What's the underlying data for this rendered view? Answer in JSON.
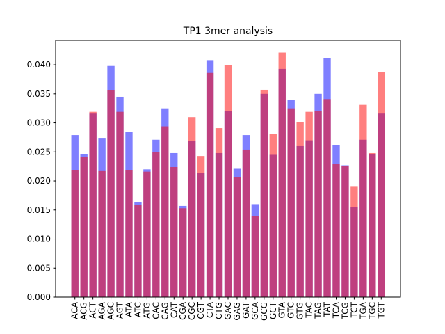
{
  "chart_data": {
    "type": "bar",
    "title": "TP1 3mer analysis",
    "categories": [
      "ACA",
      "ACG",
      "ACT",
      "AGA",
      "AGC",
      "AGT",
      "ATA",
      "ATC",
      "ATG",
      "CAC",
      "CAG",
      "CAT",
      "CGA",
      "CGC",
      "CGT",
      "CTA",
      "CTG",
      "GAC",
      "GAG",
      "GAT",
      "GCA",
      "GCG",
      "GCT",
      "GTA",
      "GTC",
      "GTG",
      "TAC",
      "TAG",
      "TAT",
      "TCA",
      "TCG",
      "TCT",
      "TGA",
      "TGC",
      "TGT"
    ],
    "series": [
      {
        "color": "#0000ff",
        "values": [
          0.0279,
          0.0246,
          0.0316,
          0.0273,
          0.0398,
          0.0345,
          0.0285,
          0.0163,
          0.022,
          0.0271,
          0.0325,
          0.0248,
          0.0157,
          0.0269,
          0.0214,
          0.0408,
          0.0248,
          0.032,
          0.0221,
          0.0279,
          0.016,
          0.035,
          0.0245,
          0.0393,
          0.034,
          0.026,
          0.027,
          0.035,
          0.0412,
          0.0262,
          0.0227,
          0.0155,
          0.0271,
          0.0246,
          0.0316
        ]
      },
      {
        "color": "#ff0000",
        "values": [
          0.0219,
          0.0242,
          0.0319,
          0.0217,
          0.0356,
          0.0319,
          0.0219,
          0.0159,
          0.0216,
          0.025,
          0.0294,
          0.0224,
          0.0153,
          0.031,
          0.0243,
          0.0386,
          0.0291,
          0.0399,
          0.0206,
          0.0254,
          0.014,
          0.0357,
          0.0281,
          0.0421,
          0.0325,
          0.0301,
          0.0319,
          0.032,
          0.0341,
          0.023,
          0.0226,
          0.019,
          0.0331,
          0.0248,
          0.0388
        ]
      }
    ],
    "opacity": 0.5,
    "ylim": [
      0,
      0.0442
    ],
    "yticks": [
      {
        "value": 0,
        "label": "0.000"
      },
      {
        "value": 0.005,
        "label": "0.005"
      },
      {
        "value": 0.01,
        "label": "0.010"
      },
      {
        "value": 0.015,
        "label": "0.015"
      },
      {
        "value": 0.02,
        "label": "0.020"
      },
      {
        "value": 0.025,
        "label": "0.025"
      },
      {
        "value": 0.03,
        "label": "0.030"
      },
      {
        "value": 0.035,
        "label": "0.035"
      },
      {
        "value": 0.04,
        "label": "0.040"
      }
    ]
  }
}
